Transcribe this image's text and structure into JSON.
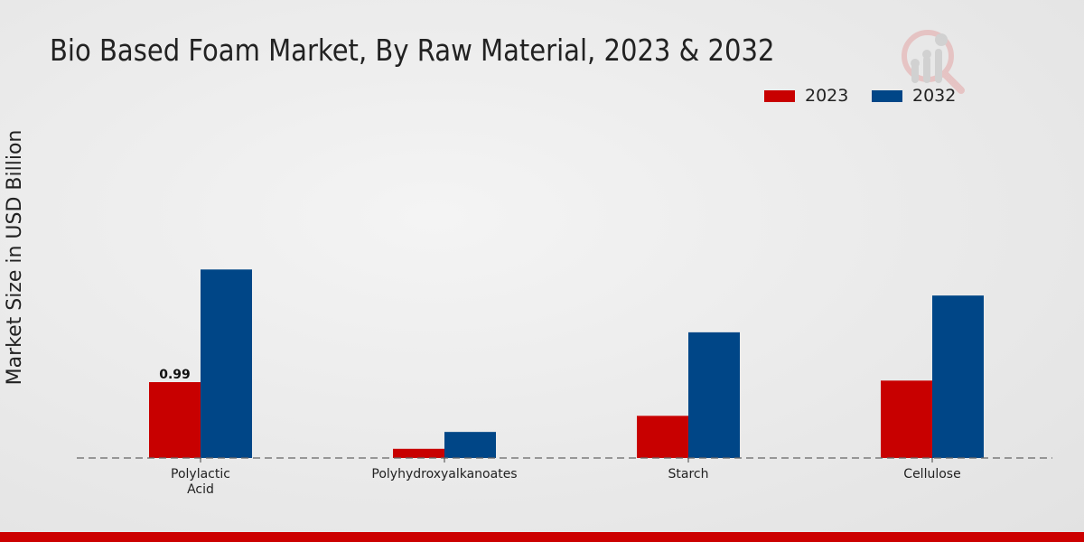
{
  "chart_data": {
    "type": "bar",
    "title": "Bio Based Foam Market, By Raw Material, 2023 & 2032",
    "xlabel": "",
    "ylabel": "Market Size in USD Billion",
    "categories": [
      "Polylactic\nAcid",
      "Polyhydroxyalkanoates",
      "Starch",
      "Cellulose"
    ],
    "series": [
      {
        "name": "2023",
        "color": "#c80000",
        "values": [
          0.99,
          0.12,
          0.55,
          1.01
        ]
      },
      {
        "name": "2032",
        "color": "#004687",
        "values": [
          2.46,
          0.34,
          1.64,
          2.12
        ]
      }
    ],
    "data_labels": [
      {
        "series": "2023",
        "category_index": 0,
        "text": "0.99"
      }
    ],
    "ylim": [
      0,
      4.68
    ],
    "grid": false,
    "legend_position": "top-right"
  }
}
